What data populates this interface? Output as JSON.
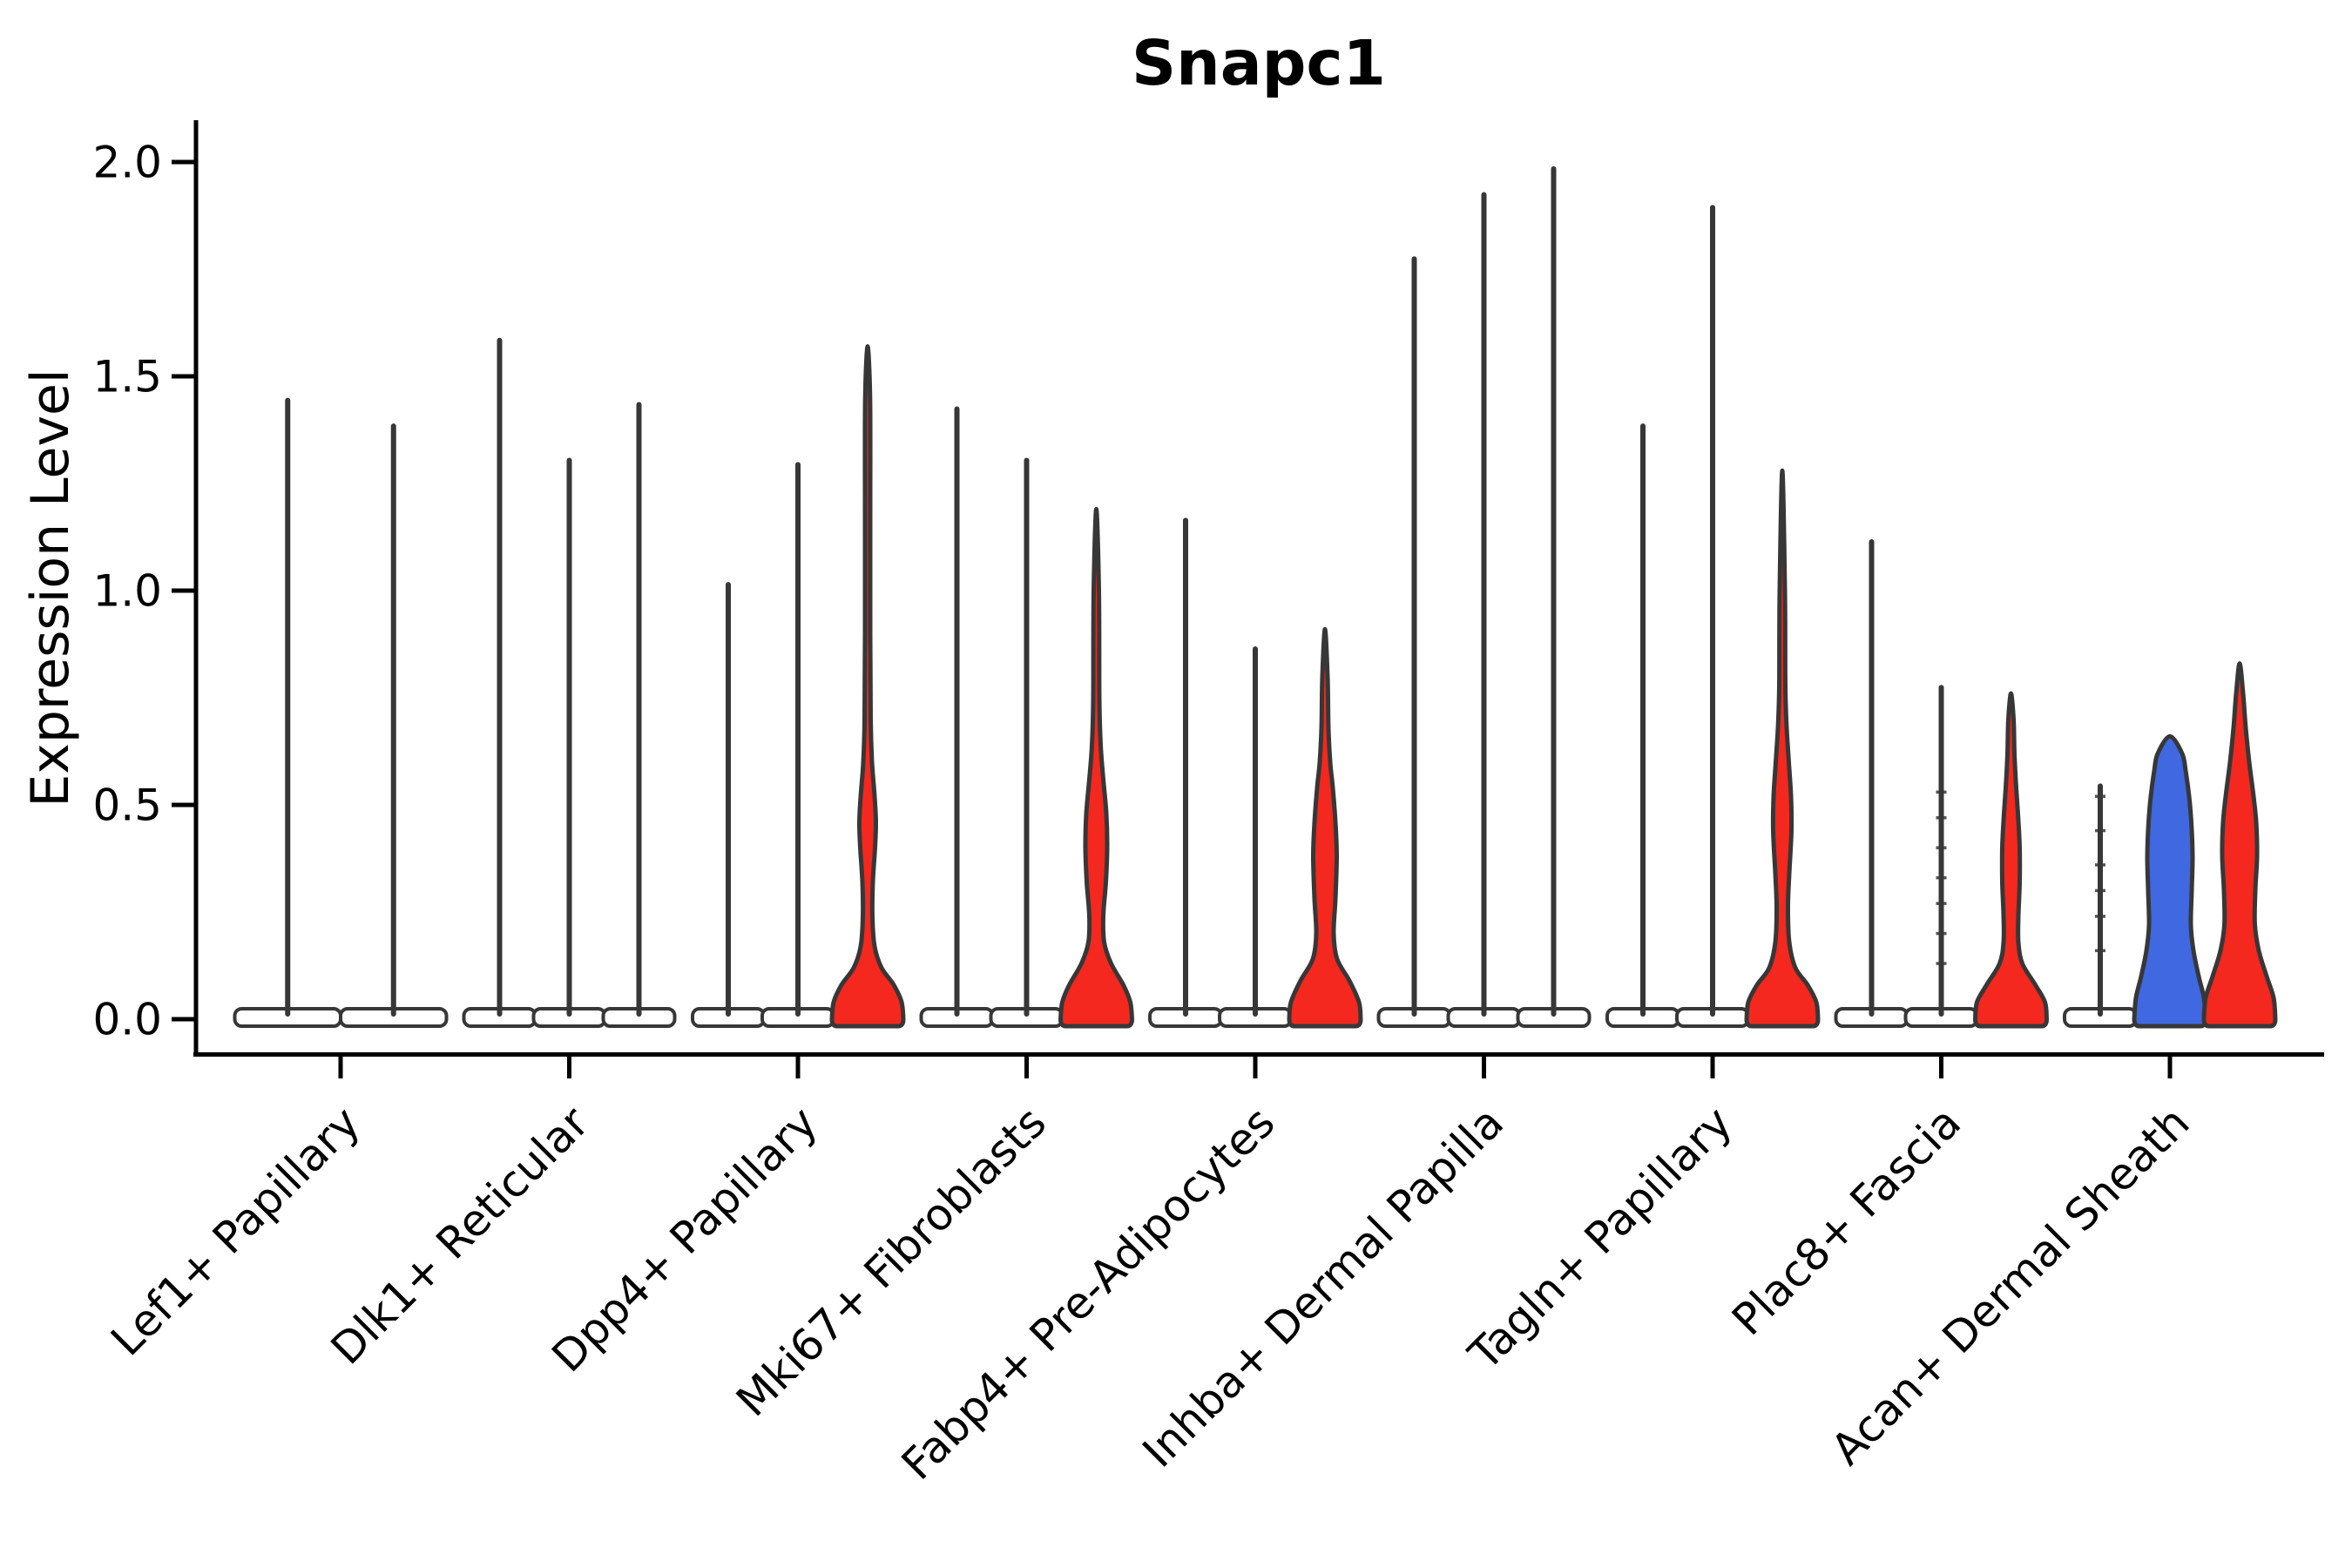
{
  "chart_data": {
    "type": "violin",
    "title": "Snapc1",
    "ylabel": "Expression Level",
    "xlabel": "",
    "ylim": [
      0,
      2.05
    ],
    "yticks": [
      0.0,
      0.5,
      1.0,
      1.5,
      2.0
    ],
    "grid": false,
    "legend": "none",
    "colors": {
      "red": "#F4281E",
      "blue": "#3F68E1",
      "edge": "#373737",
      "axis": "#000000",
      "pancake_fill": "#ffffff"
    },
    "categories": [
      "Lef1+ Papillary",
      "Dlk1+ Reticular",
      "Dpp4+ Papillary",
      "Mki67+ Fibroblasts",
      "Fabp4+ Pre-Adipocytes",
      "Inhba+ Dermal Papilla",
      "Tagln+ Papillary",
      "Plac8+ Fascia",
      "Acan+ Dermal Sheath"
    ],
    "groups": [
      {
        "category": "Lef1+ Papillary",
        "violins": [
          {
            "style": "spike",
            "max": 1.45
          },
          {
            "style": "spike",
            "max": 1.39
          }
        ]
      },
      {
        "category": "Dlk1+ Reticular",
        "violins": [
          {
            "style": "spike",
            "max": 1.59
          },
          {
            "style": "spike",
            "max": 1.31
          },
          {
            "style": "spike",
            "max": 1.44
          }
        ]
      },
      {
        "category": "Dpp4+ Papillary",
        "violins": [
          {
            "style": "spike",
            "max": 1.02
          },
          {
            "style": "spike",
            "max": 1.3
          },
          {
            "style": "violin",
            "color": "red",
            "max": 1.57,
            "profile": [
              [
                0,
                41
              ],
              [
                0.04,
                39
              ],
              [
                0.08,
                30
              ],
              [
                0.12,
                16
              ],
              [
                0.17,
                8
              ],
              [
                0.24,
                5.5
              ],
              [
                0.32,
                6
              ],
              [
                0.4,
                8.5
              ],
              [
                0.46,
                9.5
              ],
              [
                0.52,
                8
              ],
              [
                0.6,
                5
              ],
              [
                0.7,
                3.5
              ],
              [
                0.9,
                3
              ],
              [
                1.2,
                3
              ],
              [
                1.45,
                2.8
              ],
              [
                1.57,
                0
              ]
            ]
          }
        ]
      },
      {
        "category": "Mki67+ Fibroblasts",
        "violins": [
          {
            "style": "spike",
            "max": 1.43
          },
          {
            "style": "spike",
            "max": 1.31
          },
          {
            "style": "violin",
            "color": "red",
            "max": 1.19,
            "profile": [
              [
                0,
                41
              ],
              [
                0.04,
                39
              ],
              [
                0.08,
                31
              ],
              [
                0.13,
                17
              ],
              [
                0.18,
                9
              ],
              [
                0.24,
                8
              ],
              [
                0.32,
                11
              ],
              [
                0.4,
                12.5
              ],
              [
                0.48,
                11.5
              ],
              [
                0.56,
                8
              ],
              [
                0.64,
                5
              ],
              [
                0.75,
                3.5
              ],
              [
                1.0,
                3
              ],
              [
                1.19,
                0
              ]
            ]
          }
        ]
      },
      {
        "category": "Fabp4+ Pre-Adipocytes",
        "violins": [
          {
            "style": "spike",
            "max": 1.17
          },
          {
            "style": "spike",
            "max": 0.87
          },
          {
            "style": "violin",
            "color": "red",
            "max": 0.91,
            "profile": [
              [
                0,
                41
              ],
              [
                0.04,
                39
              ],
              [
                0.09,
                28
              ],
              [
                0.14,
                14
              ],
              [
                0.2,
                10
              ],
              [
                0.28,
                12
              ],
              [
                0.38,
                13.5
              ],
              [
                0.46,
                12
              ],
              [
                0.54,
                9
              ],
              [
                0.6,
                6
              ],
              [
                0.68,
                4
              ],
              [
                0.8,
                3
              ],
              [
                0.91,
                0
              ]
            ]
          }
        ]
      },
      {
        "category": "Inhba+ Dermal Papilla",
        "violins": [
          {
            "style": "spike",
            "max": 1.78
          },
          {
            "style": "spike",
            "max": 1.93
          },
          {
            "style": "spike",
            "max": 1.99
          }
        ]
      },
      {
        "category": "Tagln+ Papillary",
        "violins": [
          {
            "style": "spike",
            "max": 1.39
          },
          {
            "style": "spike",
            "max": 1.9
          },
          {
            "style": "violin",
            "color": "red",
            "max": 1.28,
            "profile": [
              [
                0,
                41
              ],
              [
                0.04,
                39
              ],
              [
                0.08,
                29
              ],
              [
                0.12,
                15
              ],
              [
                0.18,
                8
              ],
              [
                0.26,
                6.5
              ],
              [
                0.34,
                8
              ],
              [
                0.44,
                10.5
              ],
              [
                0.52,
                10
              ],
              [
                0.6,
                7.5
              ],
              [
                0.68,
                5
              ],
              [
                0.78,
                3.5
              ],
              [
                1.0,
                3
              ],
              [
                1.28,
                0
              ]
            ]
          }
        ]
      },
      {
        "category": "Plac8+ Fascia",
        "violins": [
          {
            "style": "spike",
            "max": 1.12
          },
          {
            "style": "spike",
            "max": 0.78,
            "dashes": [
              0.13,
              0.2,
              0.27,
              0.33,
              0.4,
              0.47,
              0.53
            ]
          },
          {
            "style": "violin",
            "color": "red",
            "max": 0.76,
            "profile": [
              [
                0,
                41
              ],
              [
                0.04,
                39
              ],
              [
                0.08,
                28
              ],
              [
                0.13,
                13
              ],
              [
                0.18,
                8.5
              ],
              [
                0.24,
                8.5
              ],
              [
                0.32,
                10
              ],
              [
                0.4,
                10
              ],
              [
                0.48,
                8
              ],
              [
                0.54,
                6
              ],
              [
                0.62,
                4
              ],
              [
                0.7,
                3
              ],
              [
                0.76,
                0
              ]
            ]
          }
        ]
      },
      {
        "category": "Acan+ Dermal Sheath",
        "violins": [
          {
            "style": "spike",
            "max": 0.55,
            "dashes": [
              0.16,
              0.24,
              0.3,
              0.36,
              0.44,
              0.52
            ]
          },
          {
            "style": "violin",
            "color": "blue",
            "max": 0.66,
            "profile": [
              [
                0,
                41
              ],
              [
                0.05,
                39
              ],
              [
                0.1,
                33
              ],
              [
                0.16,
                27
              ],
              [
                0.22,
                24
              ],
              [
                0.3,
                25
              ],
              [
                0.38,
                26
              ],
              [
                0.46,
                24.5
              ],
              [
                0.52,
                22
              ],
              [
                0.58,
                18
              ],
              [
                0.62,
                14
              ],
              [
                0.66,
                0
              ]
            ]
          },
          {
            "style": "violin",
            "color": "red",
            "max": 0.83,
            "profile": [
              [
                0,
                41
              ],
              [
                0.05,
                39
              ],
              [
                0.1,
                31
              ],
              [
                0.16,
                22
              ],
              [
                0.22,
                17.5
              ],
              [
                0.3,
                18
              ],
              [
                0.38,
                20
              ],
              [
                0.46,
                19
              ],
              [
                0.52,
                16
              ],
              [
                0.6,
                11
              ],
              [
                0.68,
                7
              ],
              [
                0.76,
                4
              ],
              [
                0.83,
                0
              ]
            ]
          }
        ]
      }
    ]
  }
}
